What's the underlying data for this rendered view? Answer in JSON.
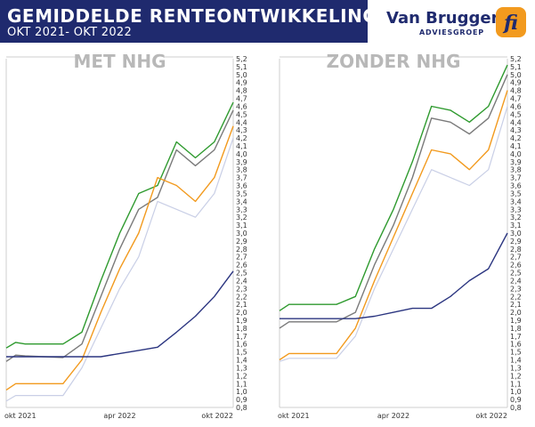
{
  "header": {
    "title": "GEMIDDELDE RENTEONTWIKKELING",
    "subtitle": "OKT 2021- OKT 2022"
  },
  "logo": {
    "name": "Van Bruggen",
    "sub": "ADVIESGROEP",
    "mark_text": "fi"
  },
  "colors": {
    "header_bg": "#1f2a6e",
    "green": "#2e9a2e",
    "gray": "#7a7a7a",
    "orange": "#f29a1e",
    "light": "#c9cfe6",
    "navy": "#2b3580",
    "logo_orange": "#f29a1e"
  },
  "chart_data": [
    {
      "type": "line",
      "title": "MET NHG",
      "y_ticks": [
        "5,2",
        "5,1",
        "5,0",
        "4,9",
        "4,8",
        "4,7",
        "4,6",
        "4,5",
        "4,4",
        "4,3",
        "4,2",
        "4,1",
        "4,0",
        "3,9",
        "3,8",
        "3,7",
        "3,6",
        "3,5",
        "3,4",
        "3,3",
        "3,2",
        "3,1",
        "3,0",
        "2,9",
        "2,8",
        "2,7",
        "2,6",
        "2,5",
        "2,4",
        "2,3",
        "2,2",
        "2,1",
        "2,0",
        "1,9",
        "1,8",
        "1,7",
        "1,6",
        "1,5",
        "1,4",
        "1,3",
        "1,2",
        "1,1",
        "1,0",
        "0,9",
        "0,8"
      ],
      "ylim": [
        0.8,
        5.2
      ],
      "x_ticks": [
        "okt 2021",
        "apr 2022",
        "okt 2022"
      ],
      "xlim": [
        0,
        12
      ],
      "series": [
        {
          "color": "#2e9a2e",
          "x": [
            0,
            0.5,
            1,
            2,
            3,
            4,
            5,
            6,
            7,
            8,
            9,
            10,
            11,
            12
          ],
          "values": [
            1.55,
            1.62,
            1.6,
            1.6,
            1.6,
            1.75,
            2.4,
            3.0,
            3.5,
            3.6,
            4.15,
            3.95,
            4.15,
            4.65
          ]
        },
        {
          "color": "#7a7a7a",
          "x": [
            0,
            0.5,
            1,
            2,
            3,
            4,
            5,
            6,
            7,
            8,
            9,
            10,
            11,
            12
          ],
          "values": [
            1.38,
            1.46,
            1.45,
            1.44,
            1.43,
            1.6,
            2.2,
            2.8,
            3.3,
            3.45,
            4.05,
            3.85,
            4.05,
            4.55
          ]
        },
        {
          "color": "#f29a1e",
          "x": [
            0,
            0.5,
            1,
            2,
            3,
            4,
            5,
            6,
            7,
            8,
            9,
            10,
            11,
            12
          ],
          "values": [
            1.02,
            1.1,
            1.1,
            1.1,
            1.1,
            1.4,
            2.0,
            2.55,
            3.0,
            3.7,
            3.6,
            3.4,
            3.7,
            4.35
          ]
        },
        {
          "color": "#c9cfe6",
          "x": [
            0,
            0.5,
            1,
            2,
            3,
            4,
            5,
            6,
            7,
            8,
            9,
            10,
            11,
            12
          ],
          "values": [
            0.88,
            0.95,
            0.95,
            0.95,
            0.95,
            1.3,
            1.8,
            2.3,
            2.7,
            3.4,
            3.3,
            3.2,
            3.5,
            4.2
          ]
        },
        {
          "color": "#2b3580",
          "x": [
            0,
            0.5,
            1,
            2,
            3,
            4,
            5,
            6,
            7,
            8,
            9,
            10,
            11,
            12
          ],
          "values": [
            1.44,
            1.44,
            1.44,
            1.44,
            1.44,
            1.44,
            1.44,
            1.48,
            1.52,
            1.56,
            1.75,
            1.95,
            2.2,
            2.52
          ]
        }
      ]
    },
    {
      "type": "line",
      "title": "ZONDER NHG",
      "y_ticks": [
        "5,2",
        "5,1",
        "5,0",
        "4,9",
        "4,8",
        "4,7",
        "4,6",
        "4,5",
        "4,4",
        "4,3",
        "4,2",
        "4,1",
        "4,0",
        "3,9",
        "3,8",
        "3,7",
        "3,6",
        "3,5",
        "3,4",
        "3,3",
        "3,2",
        "3,1",
        "3,0",
        "2,9",
        "2,8",
        "2,7",
        "2,6",
        "2,5",
        "2,4",
        "2,3",
        "2,2",
        "2,1",
        "2,0",
        "1,9",
        "1,8",
        "1,7",
        "1,6",
        "1,5",
        "1,4",
        "1,3",
        "1,2",
        "1,1",
        "1,0",
        "0,9",
        "0,8"
      ],
      "ylim": [
        0.8,
        5.2
      ],
      "x_ticks": [
        "okt 2021",
        "apr 2022",
        "okt 2022"
      ],
      "xlim": [
        0,
        12
      ],
      "series": [
        {
          "color": "#2e9a2e",
          "x": [
            0,
            0.5,
            1,
            2,
            3,
            4,
            5,
            6,
            7,
            8,
            9,
            10,
            11,
            12
          ],
          "values": [
            2.02,
            2.1,
            2.1,
            2.1,
            2.1,
            2.2,
            2.8,
            3.3,
            3.9,
            4.6,
            4.55,
            4.4,
            4.6,
            5.12
          ]
        },
        {
          "color": "#7a7a7a",
          "x": [
            0,
            0.5,
            1,
            2,
            3,
            4,
            5,
            6,
            7,
            8,
            9,
            10,
            11,
            12
          ],
          "values": [
            1.8,
            1.88,
            1.88,
            1.88,
            1.88,
            2.0,
            2.6,
            3.1,
            3.7,
            4.45,
            4.4,
            4.25,
            4.45,
            5.0
          ]
        },
        {
          "color": "#f29a1e",
          "x": [
            0,
            0.5,
            1,
            2,
            3,
            4,
            5,
            6,
            7,
            8,
            9,
            10,
            11,
            12
          ],
          "values": [
            1.4,
            1.48,
            1.48,
            1.48,
            1.48,
            1.8,
            2.4,
            2.95,
            3.5,
            4.05,
            4.0,
            3.8,
            4.05,
            4.8
          ]
        },
        {
          "color": "#c9cfe6",
          "x": [
            0,
            0.5,
            1,
            2,
            3,
            4,
            5,
            6,
            7,
            8,
            9,
            10,
            11,
            12
          ],
          "values": [
            1.38,
            1.42,
            1.42,
            1.42,
            1.42,
            1.7,
            2.3,
            2.8,
            3.3,
            3.8,
            3.7,
            3.6,
            3.8,
            4.6
          ]
        },
        {
          "color": "#2b3580",
          "x": [
            0,
            0.5,
            1,
            2,
            3,
            4,
            5,
            6,
            7,
            8,
            9,
            10,
            11,
            12
          ],
          "values": [
            1.92,
            1.92,
            1.92,
            1.92,
            1.92,
            1.92,
            1.95,
            2.0,
            2.05,
            2.05,
            2.2,
            2.4,
            2.55,
            3.0
          ]
        }
      ]
    }
  ]
}
